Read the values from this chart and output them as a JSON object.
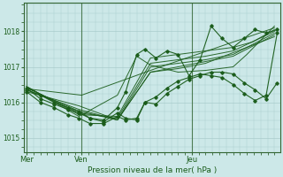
{
  "bg_color": "#cce8e8",
  "grid_color": "#aacccc",
  "line_color": "#1a5c1a",
  "marker_color": "#1a5c1a",
  "title": "Pression niveau de la mer( hPa )",
  "ylim": [
    1014.6,
    1018.8
  ],
  "yticks": [
    1015,
    1016,
    1017,
    1018
  ],
  "xtick_labels": [
    "Mer",
    "Ven",
    "Jeu"
  ],
  "xtick_pos": [
    0.0,
    2.0,
    6.0
  ],
  "vline_pos": [
    0.0,
    2.0,
    6.0
  ],
  "xlim": [
    -0.1,
    9.2
  ],
  "smooth_series": [
    {
      "x": [
        0,
        9
      ],
      "y": [
        1016.35,
        1018.05
      ]
    },
    {
      "x": [
        0,
        9
      ],
      "y": [
        1016.38,
        1017.95
      ]
    },
    {
      "x": [
        0,
        9
      ],
      "y": [
        1016.4,
        1017.85
      ]
    },
    {
      "x": [
        0,
        9
      ],
      "y": [
        1016.42,
        1017.75
      ]
    },
    {
      "x": [
        0,
        9
      ],
      "y": [
        1016.44,
        1017.65
      ]
    },
    {
      "x": [
        0,
        9
      ],
      "y": [
        1016.3,
        1017.5
      ]
    }
  ],
  "noisy_series": [
    {
      "x": [
        0,
        0.5,
        1.0,
        1.5,
        1.9,
        2.3,
        2.8,
        3.3,
        3.6,
        4.0,
        4.3,
        4.7,
        5.1,
        5.5,
        5.9,
        6.3,
        6.7,
        7.1,
        7.5,
        7.9,
        8.3,
        8.7,
        9.1
      ],
      "y": [
        1016.35,
        1016.2,
        1016.0,
        1015.85,
        1015.75,
        1015.55,
        1015.5,
        1015.85,
        1016.3,
        1017.35,
        1017.5,
        1017.25,
        1017.45,
        1017.35,
        1016.75,
        1017.2,
        1018.15,
        1017.8,
        1017.55,
        1017.8,
        1018.05,
        1017.95,
        1018.05
      ]
    },
    {
      "x": [
        0,
        0.5,
        1.0,
        1.5,
        1.9,
        2.3,
        2.8,
        3.3,
        3.6,
        4.0,
        4.3,
        4.7,
        5.1,
        5.5,
        5.9,
        6.3,
        6.7,
        7.1,
        7.5,
        7.9,
        8.3,
        8.7,
        9.1
      ],
      "y": [
        1016.4,
        1016.1,
        1015.95,
        1015.8,
        1015.7,
        1015.55,
        1015.45,
        1015.7,
        1015.55,
        1015.5,
        1016.0,
        1015.95,
        1016.25,
        1016.45,
        1016.65,
        1016.75,
        1016.85,
        1016.85,
        1016.8,
        1016.55,
        1016.35,
        1016.1,
        1016.55
      ]
    },
    {
      "x": [
        0,
        0.5,
        1.0,
        1.5,
        1.9,
        2.3,
        2.8,
        3.3,
        3.6,
        4.0,
        4.3,
        4.7,
        5.1,
        5.5,
        5.9,
        6.3,
        6.7,
        7.1,
        7.5,
        7.9,
        8.3,
        8.7,
        9.1
      ],
      "y": [
        1016.3,
        1016.0,
        1015.85,
        1015.65,
        1015.55,
        1015.4,
        1015.4,
        1015.6,
        1015.5,
        1015.55,
        1016.0,
        1016.15,
        1016.4,
        1016.6,
        1016.7,
        1016.8,
        1016.75,
        1016.7,
        1016.5,
        1016.25,
        1016.05,
        1016.2,
        1017.95
      ]
    }
  ],
  "fan_series": [
    {
      "x": [
        0,
        2.0,
        4.5,
        9.0
      ],
      "y": [
        1016.38,
        1016.2,
        1016.9,
        1018.1
      ]
    },
    {
      "x": [
        0,
        1.9,
        3.3,
        4.5,
        5.5,
        6.5,
        9.0
      ],
      "y": [
        1016.3,
        1015.9,
        1015.5,
        1016.85,
        1016.95,
        1017.1,
        1017.85
      ]
    },
    {
      "x": [
        0,
        1.9,
        3.3,
        4.5,
        5.5,
        6.5,
        7.5,
        9.0
      ],
      "y": [
        1016.35,
        1015.8,
        1015.5,
        1016.85,
        1017.0,
        1017.15,
        1017.3,
        1017.9
      ]
    },
    {
      "x": [
        0,
        1.9,
        3.3,
        4.5,
        5.5,
        6.5,
        7.5,
        9.0
      ],
      "y": [
        1016.4,
        1015.75,
        1015.5,
        1017.0,
        1017.1,
        1017.2,
        1017.35,
        1017.95
      ]
    },
    {
      "x": [
        0,
        1.9,
        3.3,
        4.5,
        5.5,
        6.5,
        7.5,
        9.0
      ],
      "y": [
        1016.42,
        1015.7,
        1015.55,
        1017.1,
        1017.2,
        1017.3,
        1017.45,
        1018.0
      ]
    },
    {
      "x": [
        0,
        1.9,
        3.3,
        4.5,
        5.5,
        6.5,
        7.5,
        8.2,
        9.0
      ],
      "y": [
        1016.44,
        1015.65,
        1015.6,
        1017.25,
        1017.35,
        1017.45,
        1017.55,
        1017.7,
        1018.05
      ]
    },
    {
      "x": [
        0,
        1.9,
        3.3,
        4.0,
        4.5,
        5.5,
        6.5,
        7.5,
        8.0,
        9.0
      ],
      "y": [
        1016.45,
        1015.6,
        1016.2,
        1017.3,
        1017.05,
        1016.85,
        1016.9,
        1017.0,
        1017.35,
        1018.15
      ]
    }
  ]
}
